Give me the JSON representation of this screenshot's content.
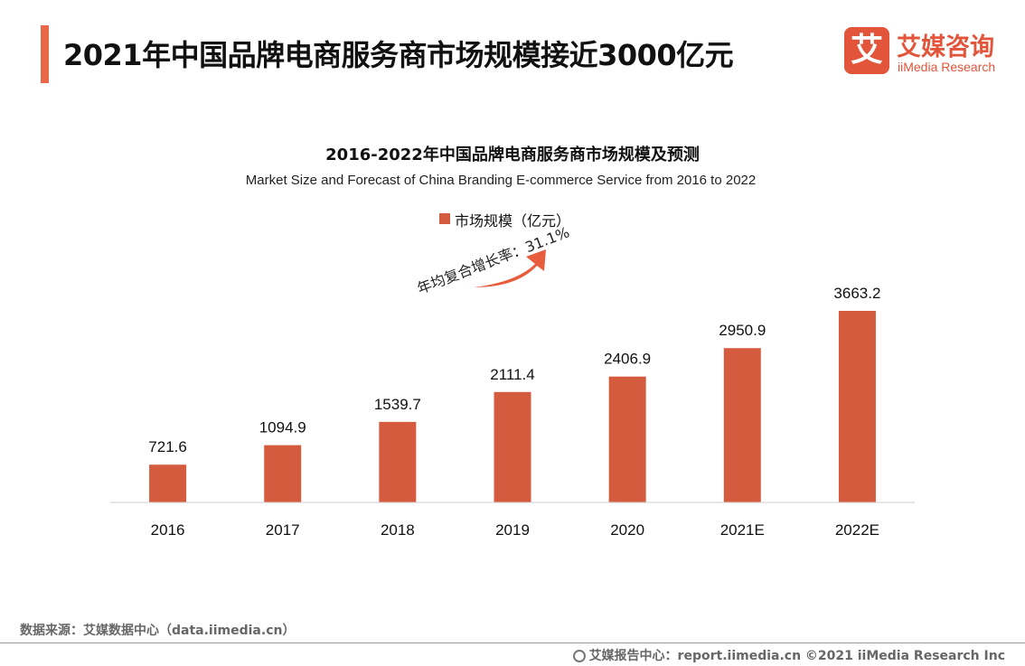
{
  "header": {
    "title": "2021年中国品牌电商服务商市场规模接近3000亿元"
  },
  "logo": {
    "mark": "艾",
    "name_cn": "艾媒咨询",
    "name_en": "iiMedia Research"
  },
  "colors": {
    "accent": "#e8694a",
    "bar": "#d45b3d",
    "brand": "#e2553a"
  },
  "chart_data": {
    "type": "bar",
    "title": "2016-2022年中国品牌电商服务商市场规模及预测",
    "subtitle": "Market Size and Forecast of China Branding E-commerce Service from 2016 to 2022",
    "categories": [
      "2016",
      "2017",
      "2018",
      "2019",
      "2020",
      "2021E",
      "2022E"
    ],
    "series": [
      {
        "name": "市场规模（亿元）",
        "values": [
          721.6,
          1094.9,
          1539.7,
          2111.4,
          2406.9,
          2950.9,
          3663.2
        ]
      }
    ],
    "value_labels": [
      "721.6",
      "1094.9",
      "1539.7",
      "2111.4",
      "2406.9",
      "2950.9",
      "3663.2"
    ],
    "ylim": [
      0,
      4000
    ],
    "legend_position": "top-center",
    "grid": false,
    "annotation": "年均复合增长率：31.1%"
  },
  "footer": {
    "source": "数据来源：艾媒数据中心（data.iimedia.cn）",
    "copyright": "艾媒报告中心：report.iimedia.cn ©2021  iiMedia Research  Inc"
  }
}
